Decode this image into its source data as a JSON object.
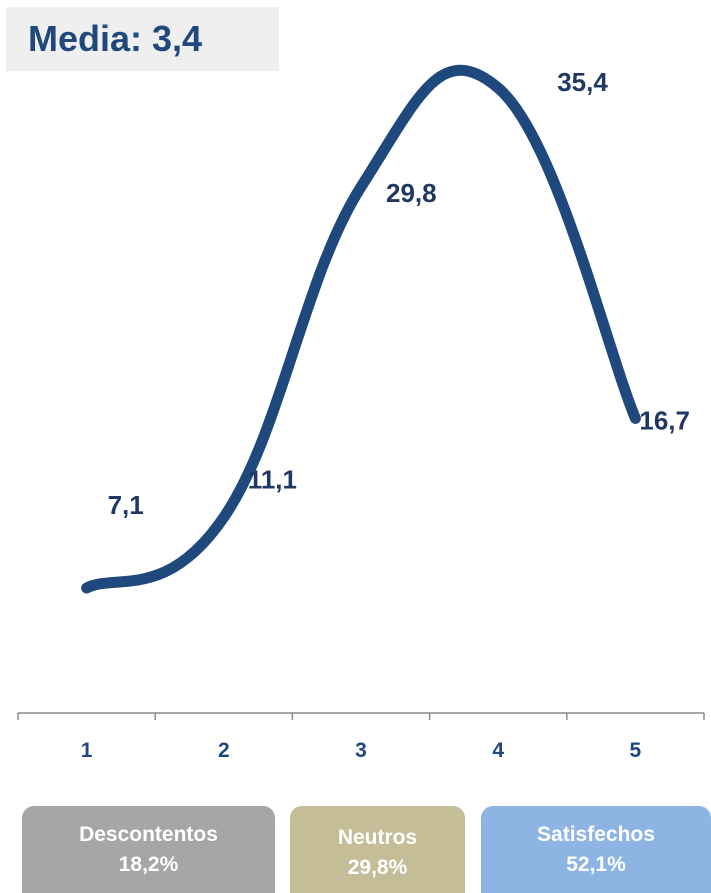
{
  "header": {
    "media_text": "Media: 3,4"
  },
  "chart_data": {
    "type": "line",
    "smooth": true,
    "categories": [
      "1",
      "2",
      "3",
      "4",
      "5"
    ],
    "values": [
      7.1,
      11.1,
      29.8,
      35.4,
      16.7
    ],
    "data_labels": [
      "7,1",
      "11,1",
      "29,8",
      "35,4",
      "16,7"
    ],
    "line_color": "#1f497d",
    "label_color": "#1f3864",
    "title": "",
    "xlabel": "",
    "ylabel": "",
    "grid": false,
    "y_axis_visible": false,
    "legend": "none"
  },
  "groups": [
    {
      "label": "Descontentos",
      "value": "18,2%",
      "color": "#a6a6a6"
    },
    {
      "label": "Neutros",
      "value": "29,8%",
      "color": "#c4bd97"
    },
    {
      "label": "Satisfechos",
      "value": "52,1%",
      "color": "#8eb4e3"
    }
  ]
}
